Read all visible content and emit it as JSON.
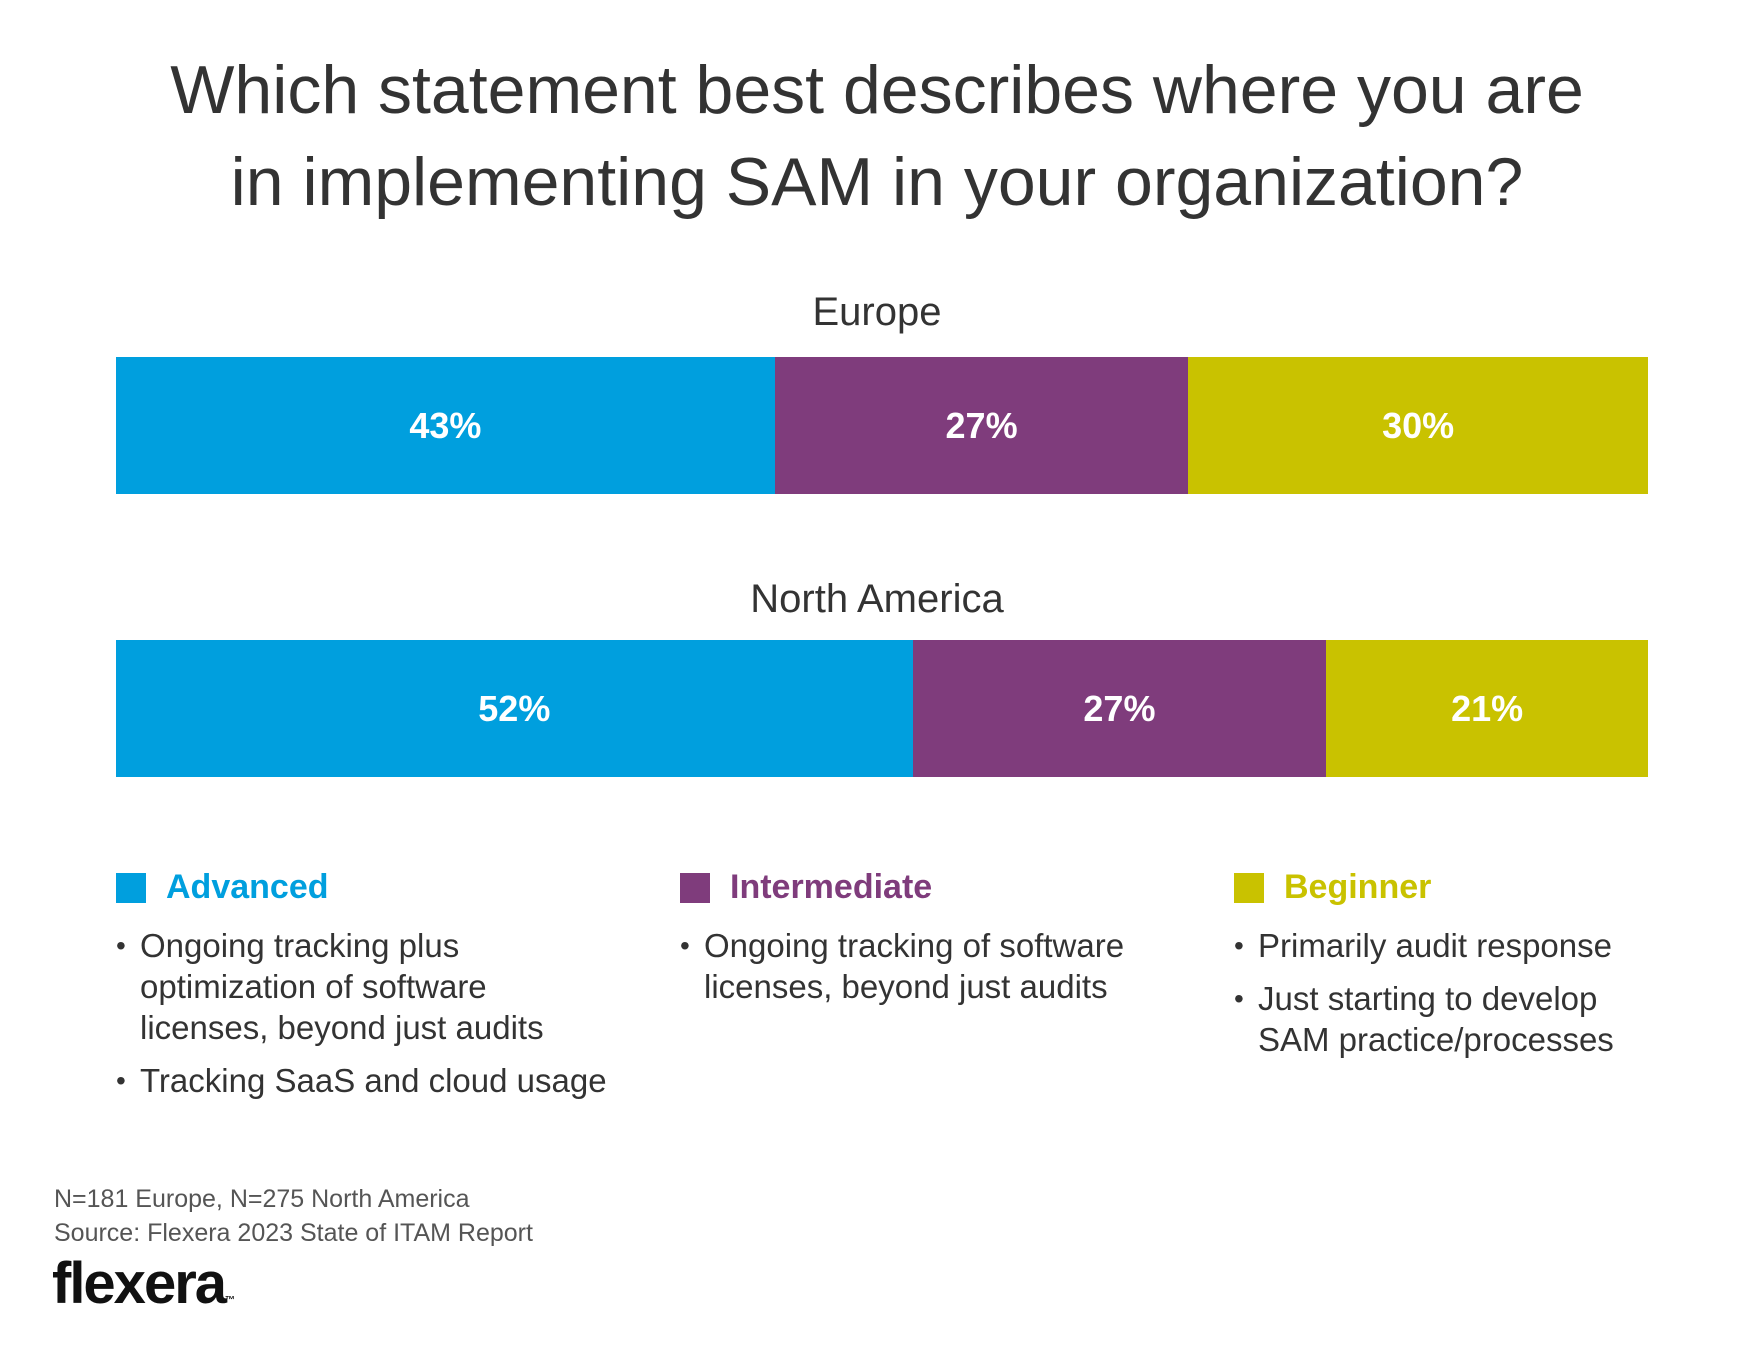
{
  "chart_data": {
    "type": "bar",
    "orientation": "horizontal-stacked-100",
    "title": "Which statement best describes where you are in implementing SAM in your organization?",
    "title_lines": [
      "Which statement best describes where you are",
      "in implementing SAM in your organization?"
    ],
    "categories": [
      "Europe",
      "North America"
    ],
    "series": [
      {
        "name": "Advanced",
        "color": "#009FDE",
        "values": [
          43,
          52
        ],
        "labels": [
          "43%",
          "52%"
        ]
      },
      {
        "name": "Intermediate",
        "color": "#7F3C7C",
        "values": [
          27,
          27
        ],
        "labels": [
          "27%",
          "27%"
        ]
      },
      {
        "name": "Beginner",
        "color": "#C9C200",
        "values": [
          30,
          21
        ],
        "labels": [
          "30%",
          "21%"
        ]
      }
    ],
    "unit": "%",
    "xlim": [
      0,
      100
    ]
  },
  "legend": [
    {
      "name": "Advanced",
      "color": "#009FDE",
      "bullets": [
        "Ongoing tracking plus optimization of software licenses, beyond just audits",
        "Tracking SaaS and cloud usage"
      ]
    },
    {
      "name": "Intermediate",
      "color": "#7F3C7C",
      "bullets": [
        "Ongoing tracking of software licenses, beyond just audits"
      ]
    },
    {
      "name": "Beginner",
      "color": "#C9C200",
      "bullets": [
        "Primarily audit response",
        "Just starting to develop SAM practice/processes"
      ]
    }
  ],
  "notes": {
    "sample": "N=181 Europe, N=275 North America",
    "source": "Source: Flexera 2023 State of ITAM Report"
  },
  "logo": {
    "text": "flexera",
    "tm": "™"
  }
}
